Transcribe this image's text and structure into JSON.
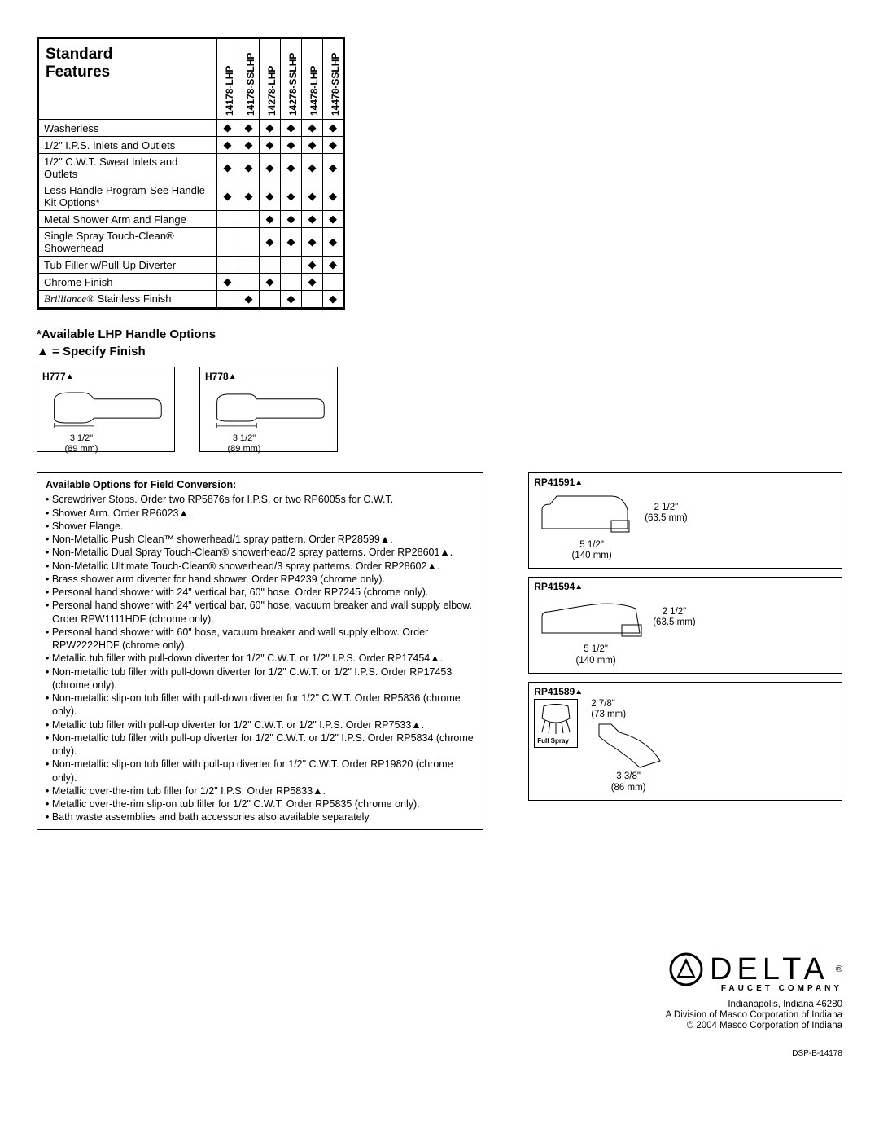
{
  "table": {
    "title": "Standard\nFeatures",
    "columns": [
      "14178-LHP",
      "14178-SSLHP",
      "14278-LHP",
      "14278-SSLHP",
      "14478-LHP",
      "14478-SSLHP"
    ],
    "rows": [
      {
        "label": "Washerless",
        "marks": [
          1,
          1,
          1,
          1,
          1,
          1
        ]
      },
      {
        "label": "1/2\" I.P.S. Inlets and Outlets",
        "marks": [
          1,
          1,
          1,
          1,
          1,
          1
        ]
      },
      {
        "label": "1/2\" C.W.T. Sweat Inlets and Outlets",
        "marks": [
          1,
          1,
          1,
          1,
          1,
          1
        ]
      },
      {
        "label": "Less Handle Program-See Handle Kit Options*",
        "marks": [
          1,
          1,
          1,
          1,
          1,
          1
        ]
      },
      {
        "label": "Metal Shower Arm and Flange",
        "marks": [
          0,
          0,
          1,
          1,
          1,
          1
        ]
      },
      {
        "label": "Single Spray Touch-Clean® Showerhead",
        "marks": [
          0,
          0,
          1,
          1,
          1,
          1
        ]
      },
      {
        "label": "Tub Filler w/Pull-Up Diverter",
        "marks": [
          0,
          0,
          0,
          0,
          1,
          1
        ]
      },
      {
        "label": "Chrome Finish",
        "marks": [
          1,
          0,
          1,
          0,
          1,
          0
        ]
      },
      {
        "label": "Brilliance® Stainless Finish",
        "brill": true,
        "marks": [
          0,
          1,
          0,
          1,
          0,
          1
        ]
      }
    ]
  },
  "heading1": "*Available LHP Handle Options",
  "heading2": "▲ = Specify Finish",
  "handles": [
    {
      "id": "H777",
      "dim1": "3 1/2\"",
      "dim2": "(89 mm)"
    },
    {
      "id": "H778",
      "dim1": "3 1/2\"",
      "dim2": "(89 mm)"
    }
  ],
  "options": {
    "title": "Available Options for Field Conversion:",
    "lines": [
      "• Screwdriver Stops. Order two RP5876s for I.P.S. or two RP6005s for C.W.T.",
      "• Shower Arm. Order RP6023▲.",
      "• Shower Flange.",
      "• Non-Metallic Push Clean™ showerhead/1 spray pattern. Order RP28599▲.",
      "• Non-Metallic Dual Spray Touch-Clean® showerhead/2 spray patterns. Order RP28601▲.",
      "• Non-Metallic Ultimate Touch-Clean® showerhead/3 spray patterns. Order RP28602▲.",
      "• Brass shower arm diverter for hand shower. Order RP4239 (chrome only).",
      "• Personal hand shower with 24\" vertical bar, 60\" hose. Order RP7245 (chrome only).",
      "• Personal hand shower with 24\" vertical bar, 60\" hose, vacuum breaker and wall supply elbow. Order RPW1111HDF (chrome only).",
      "• Personal hand shower with 60\" hose, vacuum breaker and wall supply elbow. Order RPW2222HDF (chrome only).",
      "• Metallic tub filler with pull-down diverter for 1/2\" C.W.T. or 1/2\" I.P.S. Order RP17454▲.",
      "• Non-metallic tub filler with pull-down diverter for 1/2\" C.W.T. or 1/2\" I.P.S. Order RP17453 (chrome only).",
      "• Non-metallic slip-on tub filler with pull-down diverter for 1/2\" C.W.T. Order RP5836 (chrome only).",
      "• Metallic tub filler with pull-up diverter for 1/2\" C.W.T.  or 1/2\" I.P.S. Order RP7533▲.",
      "• Non-metallic tub filler with pull-up diverter for 1/2\" C.W.T.  or 1/2\" I.P.S. Order RP5834 (chrome only).",
      "• Non-metallic slip-on tub filler with pull-up diverter for 1/2\" C.W.T. Order RP19820 (chrome only).",
      "• Metallic over-the-rim tub filler for 1/2\" I.P.S. Order RP5833▲.",
      "• Metallic over-the-rim slip-on tub filler for 1/2\" C.W.T. Order RP5835 (chrome only).",
      "• Bath waste assemblies and bath accessories also available separately."
    ]
  },
  "parts": [
    {
      "id": "RP41591",
      "type": "spout",
      "h": "2 1/2\"",
      "hmm": "(63.5 mm)",
      "w": "5 1/2\"",
      "wmm": "(140 mm)"
    },
    {
      "id": "RP41594",
      "type": "spout",
      "h": "2 1/2\"",
      "hmm": "(63.5 mm)",
      "w": "5 1/2\"",
      "wmm": "(140 mm)"
    },
    {
      "id": "RP41589",
      "type": "showerhead",
      "note": "Full Spray",
      "h": "2 7/8\"",
      "hmm": "(73 mm)",
      "w": "3 3/8\"",
      "wmm": "(86 mm)"
    }
  ],
  "footer": {
    "brand": "DELTA",
    "sub": "FAUCET COMPANY",
    "l1": "Indianapolis, Indiana 46280",
    "l2": "A Division of Masco Corporation of Indiana",
    "l3": "© 2004 Masco Corporation of Indiana",
    "docid": "DSP-B-14178"
  },
  "mark_glyph": "◆"
}
